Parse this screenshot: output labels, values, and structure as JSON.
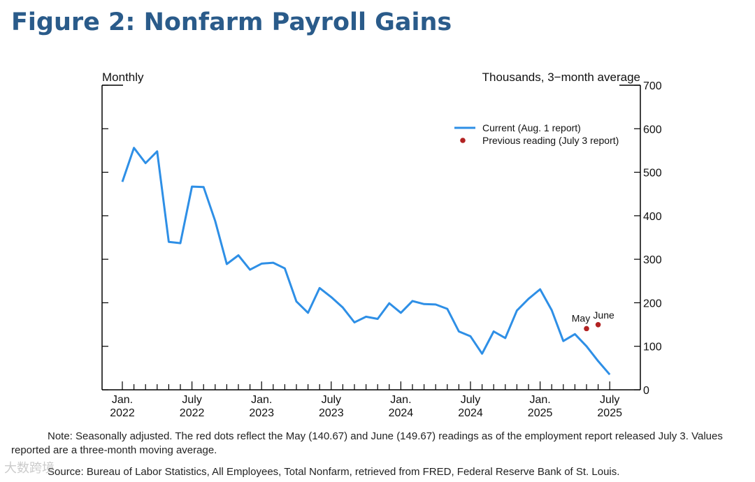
{
  "figure": {
    "title": "Figure 2: Nonfarm Payroll Gains",
    "title_color": "#2a5b8a",
    "note": "Note: Seasonally adjusted. The red dots reflect the May (140.67) and June (149.67) readings as of the employment report released July 3. Values reported are a three-month moving average.",
    "source": "Source: Bureau of Labor Statistics, All Employees, Total Nonfarm, retrieved from FRED, Federal Reserve Bank of St. Louis.",
    "watermark": "大数跨境"
  },
  "chart_data": {
    "type": "line",
    "left_axis_label": "Monthly",
    "right_axis_label": "Thousands, 3−month average",
    "ylim": [
      0,
      700
    ],
    "y_ticks": [
      0,
      100,
      200,
      300,
      400,
      500,
      600,
      700
    ],
    "x_start": "Jan. 2022",
    "x_months": 43,
    "x_labels": [
      {
        "month_index": 0,
        "line1": "Jan.",
        "line2": "2022"
      },
      {
        "month_index": 6,
        "line1": "July",
        "line2": "2022"
      },
      {
        "month_index": 12,
        "line1": "Jan.",
        "line2": "2023"
      },
      {
        "month_index": 18,
        "line1": "July",
        "line2": "2023"
      },
      {
        "month_index": 24,
        "line1": "Jan.",
        "line2": "2024"
      },
      {
        "month_index": 30,
        "line1": "July",
        "line2": "2024"
      },
      {
        "month_index": 36,
        "line1": "Jan.",
        "line2": "2025"
      },
      {
        "month_index": 42,
        "line1": "July",
        "line2": "2025"
      }
    ],
    "series": [
      {
        "name": "Current (Aug. 1 report)",
        "color": "#2e8fe6",
        "values": [
          478,
          556,
          521,
          548,
          340,
          337,
          467,
          466,
          388,
          289,
          309,
          276,
          290,
          292,
          279,
          203,
          177,
          234,
          213,
          189,
          155,
          168,
          163,
          199,
          177,
          204,
          197,
          196,
          186,
          134,
          123,
          83,
          134,
          119,
          182,
          209,
          231,
          183,
          112,
          128,
          100,
          66,
          35
        ]
      }
    ],
    "previous_readings": {
      "name": "Previous reading (July 3 report)",
      "color": "#b22222",
      "points": [
        {
          "label": "May",
          "month_index": 40,
          "value": 140.67
        },
        {
          "label": "June",
          "month_index": 41,
          "value": 149.67
        }
      ]
    },
    "legend_position": "top-right"
  }
}
